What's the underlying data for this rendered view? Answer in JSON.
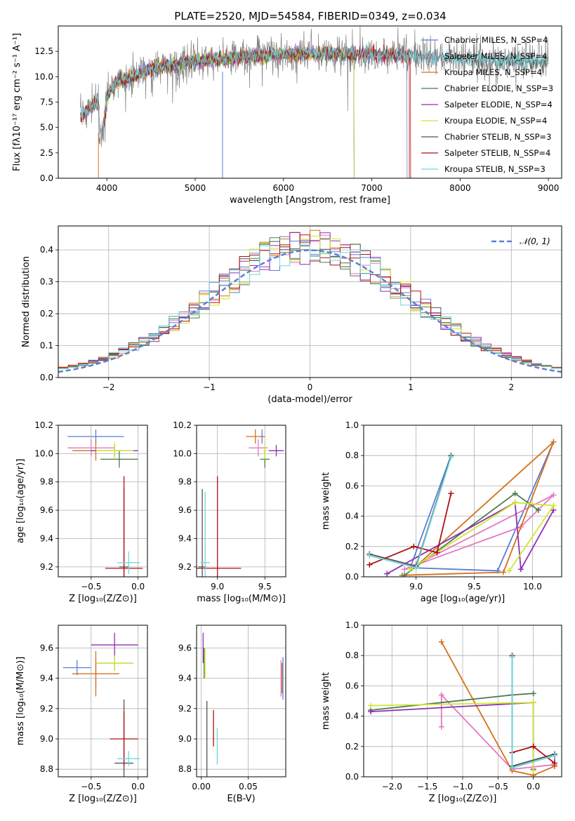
{
  "figure": {
    "title": "PLATE=2520, MJD=54584, FIBERID=0349, z=0.034"
  },
  "colors": [
    "#5a7fd8",
    "#e377c2",
    "#d4721c",
    "#4c7a50",
    "#8e2fb5",
    "#cfe82a",
    "#555555",
    "#b01010",
    "#6fd6de"
  ],
  "chart_data": [
    {
      "id": "spectrum",
      "type": "line",
      "title": "PLATE=2520, MJD=54584, FIBERID=0349, z=0.034",
      "xlabel": "wavelength [Angstrom, rest frame]",
      "ylabel": "Flux [fλ10⁻¹⁷ erg cm⁻² s⁻¹ A⁻¹]",
      "xlim": [
        3450,
        9150
      ],
      "ylim": [
        0,
        15
      ],
      "xticks": [
        4000,
        5000,
        6000,
        7000,
        8000,
        9000
      ],
      "yticks": [
        0.0,
        2.5,
        5.0,
        7.5,
        10.0,
        12.5
      ],
      "legend_position": "right",
      "legend": [
        "Chabrier MILES, N_SSP=4",
        "Salpeter MILES, N_SSP=4",
        "Kroupa MILES, N_SSP=4",
        "Chabrier ELODIE, N_SSP=3",
        "Salpeter ELODIE, N_SSP=4",
        "Kroupa ELODIE, N_SSP=4",
        "Chabrier STELIB, N_SSP=3",
        "Salpeter STELIB, N_SSP=4",
        "Kroupa STELIB, N_SSP=3"
      ],
      "data_series": {
        "name": "data",
        "color": "#808080",
        "x": [
          3700,
          9000
        ]
      },
      "model_ranges": [
        [
          3700,
          7400
        ],
        [
          3700,
          7420
        ],
        [
          3700,
          7430
        ],
        [
          3850,
          6800
        ],
        [
          3850,
          6800
        ],
        [
          3850,
          6800
        ],
        [
          3700,
          9000
        ],
        [
          3700,
          7440
        ],
        [
          3700,
          9000
        ]
      ],
      "continuum": [
        [
          3700,
          6.0
        ],
        [
          3800,
          7.0
        ],
        [
          3900,
          7.5
        ],
        [
          3950,
          4.5
        ],
        [
          4000,
          8.0
        ],
        [
          4100,
          9.5
        ],
        [
          4300,
          10.0
        ],
        [
          4500,
          10.8
        ],
        [
          4800,
          11.2
        ],
        [
          5000,
          11.5
        ],
        [
          5200,
          11.7
        ],
        [
          5500,
          11.9
        ],
        [
          6000,
          12.2
        ],
        [
          6500,
          12.3
        ],
        [
          7000,
          12.2
        ],
        [
          7500,
          12.0
        ],
        [
          8000,
          11.8
        ],
        [
          8500,
          11.6
        ],
        [
          9000,
          11.5
        ]
      ]
    },
    {
      "id": "residuals",
      "type": "histogram",
      "xlabel": "(data-model)/error",
      "ylabel": "Normed distribution",
      "xlim": [
        -2.5,
        2.5
      ],
      "ylim": [
        0,
        0.475
      ],
      "xticks": [
        -2,
        -1,
        0,
        1,
        2
      ],
      "yticks": [
        0.0,
        0.1,
        0.2,
        0.3,
        0.4
      ],
      "bins": 50,
      "legend_position": "top-right",
      "legend": [
        {
          "label": "𝒩(0, 1)",
          "style": "dashed",
          "color": "#5a7fd8"
        }
      ],
      "gaussian": {
        "mu": 0,
        "sigma": 1
      },
      "grid": true
    },
    {
      "id": "age-vs-Z",
      "type": "errorbar",
      "xlabel": "Z [log₁₀(Z/Z⊙)]",
      "ylabel": "age  [log₁₀(age/yr)]",
      "xlim": [
        -0.85,
        0.1
      ],
      "ylim": [
        9.13,
        10.2
      ],
      "xticks": [
        -0.5,
        0.0
      ],
      "yticks": [
        9.2,
        9.4,
        9.6,
        9.8,
        10.0,
        10.2
      ],
      "grid": true,
      "points": [
        {
          "x": -0.45,
          "xerr": 0.3,
          "y": 10.12,
          "yerr": 0.05,
          "c": 0
        },
        {
          "x": -0.5,
          "xerr": 0.25,
          "y": 10.04,
          "yerr": 0.06,
          "c": 1
        },
        {
          "x": -0.45,
          "xerr": 0.25,
          "y": 10.02,
          "yerr": 0.07,
          "c": 2
        },
        {
          "x": -0.2,
          "xerr": 0.2,
          "y": 9.96,
          "yerr": 0.06,
          "c": 3
        },
        {
          "x": -0.25,
          "xerr": 0.25,
          "y": 10.02,
          "yerr": 0.04,
          "c": 4
        },
        {
          "x": -0.25,
          "xerr": 0.2,
          "y": 10.02,
          "yerr": 0.06,
          "c": 5
        },
        {
          "x": -0.15,
          "xerr": 0.05,
          "y": 9.2,
          "yerr": 0.55,
          "c": 6
        },
        {
          "x": -0.15,
          "xerr": 0.2,
          "y": 9.19,
          "yerr": 0.65,
          "c": 7
        },
        {
          "x": -0.1,
          "xerr": 0.12,
          "y": 9.23,
          "yerr": 0.08,
          "c": 8
        }
      ]
    },
    {
      "id": "age-vs-mass",
      "type": "errorbar",
      "xlabel": "mass [log₁₀(M/M⊙)]",
      "xlim": [
        8.78,
        9.72
      ],
      "ylim": [
        9.13,
        10.2
      ],
      "xticks": [
        9.0,
        9.5
      ],
      "yticks": [
        9.2,
        9.4,
        9.6,
        9.8,
        10.0,
        10.2
      ],
      "grid": true,
      "points": [
        {
          "x": 9.47,
          "xerr": 0.03,
          "y": 10.12,
          "yerr": 0.05,
          "c": 0
        },
        {
          "x": 9.43,
          "xerr": 0.1,
          "y": 10.04,
          "yerr": 0.06,
          "c": 1
        },
        {
          "x": 9.4,
          "xerr": 0.1,
          "y": 10.12,
          "yerr": 0.05,
          "c": 2
        },
        {
          "x": 9.5,
          "xerr": 0.05,
          "y": 9.96,
          "yerr": 0.06,
          "c": 3
        },
        {
          "x": 9.62,
          "xerr": 0.08,
          "y": 10.02,
          "yerr": 0.04,
          "c": 4
        },
        {
          "x": 9.5,
          "xerr": 0.02,
          "y": 10.02,
          "yerr": 0.06,
          "c": 5
        },
        {
          "x": 8.84,
          "xerr": 0.04,
          "y": 9.2,
          "yerr": 0.55,
          "c": 6
        },
        {
          "x": 9.0,
          "xerr": 0.25,
          "y": 9.19,
          "yerr": 0.65,
          "c": 7
        },
        {
          "x": 8.87,
          "xerr": 0.05,
          "y": 9.23,
          "yerr": 0.5,
          "c": 8
        }
      ]
    },
    {
      "id": "weight-vs-age",
      "type": "line",
      "xlabel": "age  [log₁₀(age/yr)]",
      "ylabel": "mass weight",
      "xlim": [
        8.55,
        10.25
      ],
      "ylim": [
        0,
        1
      ],
      "xticks": [
        9.0,
        9.5,
        10.0
      ],
      "yticks": [
        0.0,
        0.2,
        0.4,
        0.6,
        0.8,
        1.0
      ],
      "grid": true,
      "series": [
        {
          "c": 0,
          "x": [
            9.3,
            8.95,
            9.7,
            10.18
          ],
          "y": [
            0.8,
            0.06,
            0.04,
            0.89
          ]
        },
        {
          "c": 1,
          "x": [
            8.9,
            9.9,
            10.18,
            9.0
          ],
          "y": [
            0.05,
            0.33,
            0.54,
            0.08
          ]
        },
        {
          "c": 2,
          "x": [
            8.88,
            9.75,
            10.18,
            9.0
          ],
          "y": [
            0.01,
            0.03,
            0.89,
            0.07
          ]
        },
        {
          "c": 3,
          "x": [
            8.9,
            9.85,
            10.05
          ],
          "y": [
            0.01,
            0.55,
            0.44
          ]
        },
        {
          "c": 4,
          "x": [
            8.75,
            9.85,
            9.9,
            10.18
          ],
          "y": [
            0.02,
            0.49,
            0.05,
            0.44
          ]
        },
        {
          "c": 5,
          "x": [
            8.95,
            9.85,
            10.18,
            9.8
          ],
          "y": [
            0.05,
            0.49,
            0.47,
            0.04
          ]
        },
        {
          "c": 6,
          "x": [
            8.6,
            9.0,
            9.3
          ],
          "y": [
            0.15,
            0.07,
            0.8
          ]
        },
        {
          "c": 7,
          "x": [
            8.6,
            8.98,
            9.18,
            9.3
          ],
          "y": [
            0.08,
            0.2,
            0.16,
            0.55
          ]
        },
        {
          "c": 8,
          "x": [
            8.6,
            9.0,
            9.3
          ],
          "y": [
            0.14,
            0.06,
            0.79
          ]
        }
      ]
    },
    {
      "id": "mass-vs-Z",
      "type": "errorbar",
      "xlabel": "Z [log₁₀(Z/Z⊙)]",
      "ylabel": "mass [log₁₀(M/M⊙)]",
      "xlim": [
        -0.85,
        0.1
      ],
      "ylim": [
        8.75,
        9.75
      ],
      "xticks": [
        -0.5,
        0.0
      ],
      "yticks": [
        8.8,
        9.0,
        9.2,
        9.4,
        9.6
      ],
      "grid": true,
      "points": [
        {
          "x": -0.65,
          "xerr": 0.15,
          "y": 9.47,
          "yerr": 0.05,
          "c": 0
        },
        {
          "x": -0.45,
          "xerr": 0.25,
          "y": 9.43,
          "yerr": 0.1,
          "c": 1
        },
        {
          "x": -0.45,
          "xerr": 0.25,
          "y": 9.43,
          "yerr": 0.15,
          "c": 2
        },
        {
          "x": -0.25,
          "xerr": 0.2,
          "y": 9.5,
          "yerr": 0.05,
          "c": 3
        },
        {
          "x": -0.25,
          "xerr": 0.25,
          "y": 9.62,
          "yerr": 0.08,
          "c": 4
        },
        {
          "x": -0.25,
          "xerr": 0.2,
          "y": 9.5,
          "yerr": 0.05,
          "c": 5
        },
        {
          "x": -0.15,
          "xerr": 0.1,
          "y": 8.84,
          "yerr": 0.42,
          "c": 6
        },
        {
          "x": -0.15,
          "xerr": 0.15,
          "y": 9.0,
          "yerr": 0.18,
          "c": 7
        },
        {
          "x": -0.1,
          "xerr": 0.12,
          "y": 8.87,
          "yerr": 0.05,
          "c": 8
        }
      ]
    },
    {
      "id": "mass-vs-ebv",
      "type": "errorbar",
      "xlabel": "E(B-V)",
      "xlim": [
        -0.005,
        0.09
      ],
      "ylim": [
        8.75,
        9.75
      ],
      "xticks": [
        0.0,
        0.05
      ],
      "yticks": [
        8.8,
        9.0,
        9.2,
        9.4,
        9.6
      ],
      "grid": true,
      "points": [
        {
          "x": 0.087,
          "xerr": 0,
          "y": 9.4,
          "yerr": 0.14,
          "c": 0
        },
        {
          "x": 0.085,
          "xerr": 0,
          "y": 9.4,
          "yerr": 0.12,
          "c": 1
        },
        {
          "x": 0.086,
          "xerr": 0,
          "y": 9.4,
          "yerr": 0.1,
          "c": 2
        },
        {
          "x": 0.003,
          "xerr": 0,
          "y": 9.5,
          "yerr": 0.1,
          "c": 3
        },
        {
          "x": 0.002,
          "xerr": 0,
          "y": 9.6,
          "yerr": 0.1,
          "c": 4
        },
        {
          "x": 0.004,
          "xerr": 0,
          "y": 9.5,
          "yerr": 0.1,
          "c": 5
        },
        {
          "x": 0.006,
          "xerr": 0,
          "y": 8.95,
          "yerr": 0.3,
          "c": 6
        },
        {
          "x": 0.013,
          "xerr": 0,
          "y": 9.07,
          "yerr": 0.12,
          "c": 7
        },
        {
          "x": 0.017,
          "xerr": 0,
          "y": 8.95,
          "yerr": 0.12,
          "c": 8
        }
      ]
    },
    {
      "id": "weight-vs-Z",
      "type": "line",
      "xlabel": "Z [log₁₀(Z/Z⊙)]",
      "ylabel": "mass weight",
      "xlim": [
        -2.4,
        0.4
      ],
      "ylim": [
        0,
        1
      ],
      "xticks": [
        -2.0,
        -1.5,
        -1.0,
        -0.5,
        0.0
      ],
      "yticks": [
        0.0,
        0.2,
        0.4,
        0.6,
        0.8,
        1.0
      ],
      "grid": true,
      "series": [
        {
          "c": 0,
          "x": [
            -0.3,
            -0.3,
            0.3,
            0.3
          ],
          "y": [
            0.8,
            0.06,
            0.14,
            0.07
          ]
        },
        {
          "c": 1,
          "x": [
            -1.3,
            -1.3,
            -0.3,
            0.3
          ],
          "y": [
            0.33,
            0.54,
            0.05,
            0.08
          ]
        },
        {
          "c": 2,
          "x": [
            -1.3,
            -0.3,
            0.0,
            0.3
          ],
          "y": [
            0.89,
            0.04,
            0.01,
            0.07
          ]
        },
        {
          "c": 3,
          "x": [
            -2.3,
            -0.3,
            0.0
          ],
          "y": [
            0.44,
            0.54,
            0.55
          ]
        },
        {
          "c": 4,
          "x": [
            -2.3,
            0.0,
            0.0
          ],
          "y": [
            0.43,
            0.49,
            0.05
          ]
        },
        {
          "c": 5,
          "x": [
            -2.3,
            0.0,
            0.0
          ],
          "y": [
            0.47,
            0.49,
            0.04
          ]
        },
        {
          "c": 6,
          "x": [
            -0.3,
            -0.3,
            0.3
          ],
          "y": [
            0.8,
            0.07,
            0.15
          ]
        },
        {
          "c": 7,
          "x": [
            -0.3,
            0.0,
            0.3
          ],
          "y": [
            0.16,
            0.2,
            0.09
          ]
        },
        {
          "c": 8,
          "x": [
            -0.3,
            -0.3,
            0.3
          ],
          "y": [
            0.79,
            0.06,
            0.14
          ]
        }
      ]
    }
  ]
}
